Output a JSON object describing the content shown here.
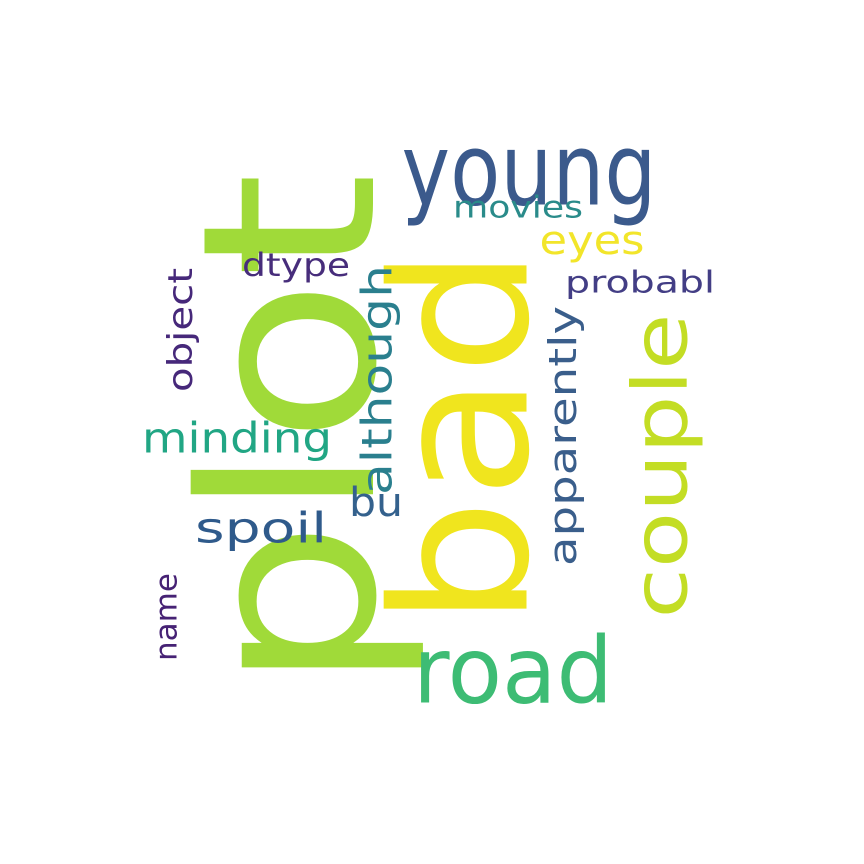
{
  "word_cloud": {
    "words": [
      {
        "text": "plot",
        "color": "#a0da39"
      },
      {
        "text": "bad",
        "color": "#f0e51e"
      },
      {
        "text": "young",
        "color": "#3b5a8c"
      },
      {
        "text": "road",
        "color": "#3dbc74"
      },
      {
        "text": "couple",
        "color": "#c3dd24"
      },
      {
        "text": "although",
        "color": "#2a7f8e"
      },
      {
        "text": "apparently",
        "color": "#3a5e8b"
      },
      {
        "text": "minding",
        "color": "#21a684"
      },
      {
        "text": "spoil",
        "color": "#2f5a8b"
      },
      {
        "text": "eyes",
        "color": "#f2e52a"
      },
      {
        "text": "movies",
        "color": "#2a8b8a"
      },
      {
        "text": "probabl",
        "color": "#433e85"
      },
      {
        "text": "dtype",
        "color": "#472d7b"
      },
      {
        "text": "object",
        "color": "#46287a"
      },
      {
        "text": "bu",
        "color": "#34618d"
      },
      {
        "text": "name",
        "color": "#462274"
      }
    ]
  }
}
